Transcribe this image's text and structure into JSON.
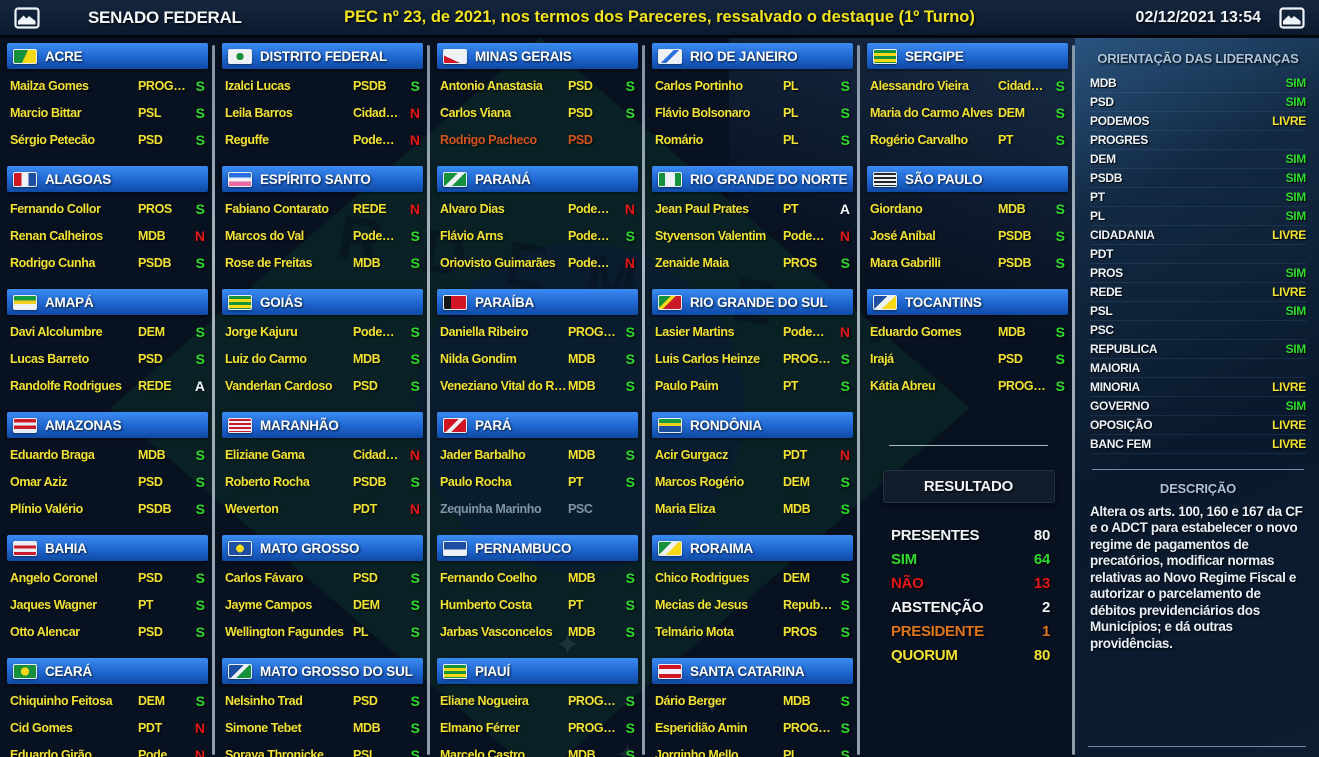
{
  "header": {
    "app": "SENADO FEDERAL",
    "title": "PEC nº 23, de 2021, nos termos dos Pareceres, ressalvado o destaque (1º Turno)",
    "datetime": "02/12/2021 13:54",
    "left_icon": "screen-icon",
    "right_icon": "screen-icon"
  },
  "vote_colors": {
    "sim": "#2ddc2d",
    "nao": "#e81717",
    "abstencao": "#f4f8fc",
    "presidente": "#d2561d",
    "livre": "#f2e232"
  },
  "states": [
    {
      "name": "ACRE",
      "flag": "background:linear-gradient(115deg,#15913c 48%,#f7d916 52%)",
      "senators": [
        {
          "name": "Mailza Gomes",
          "party": "PROGRES",
          "vote": "S",
          "status": "normal"
        },
        {
          "name": "Marcio Bittar",
          "party": "PSL",
          "vote": "S",
          "status": "normal"
        },
        {
          "name": "Sérgio Petecão",
          "party": "PSD",
          "vote": "S",
          "status": "normal"
        }
      ]
    },
    {
      "name": "ALAGOAS",
      "flag": "background:linear-gradient(90deg,#d01525 33%,#eef2f6 33% 66%,#1d4ea0 66%)",
      "senators": [
        {
          "name": "Fernando Collor",
          "party": "PROS",
          "vote": "S",
          "status": "normal"
        },
        {
          "name": "Renan Calheiros",
          "party": "MDB",
          "vote": "N",
          "status": "normal"
        },
        {
          "name": "Rodrigo Cunha",
          "party": "PSDB",
          "vote": "S",
          "status": "normal"
        }
      ]
    },
    {
      "name": "AMAPÁ",
      "flag": "background:linear-gradient(180deg,#159a3c 0 34%,#f2d01e 34% 62%,#eef2f6 62%)",
      "senators": [
        {
          "name": "Davi Alcolumbre",
          "party": "DEM",
          "vote": "S",
          "status": "normal"
        },
        {
          "name": "Lucas Barreto",
          "party": "PSD",
          "vote": "S",
          "status": "normal"
        },
        {
          "name": "Randolfe Rodrigues",
          "party": "REDE",
          "vote": "A",
          "status": "normal"
        }
      ]
    },
    {
      "name": "AMAZONAS",
      "flag": "background:linear-gradient(180deg,#c81a2b 0 25%,#e8edf2 25% 50%,#c81a2b 50% 75%,#e8edf2 75%)",
      "senators": [
        {
          "name": "Eduardo Braga",
          "party": "MDB",
          "vote": "S",
          "status": "normal"
        },
        {
          "name": "Omar Aziz",
          "party": "PSD",
          "vote": "S",
          "status": "normal"
        },
        {
          "name": "Plínio Valério",
          "party": "PSDB",
          "vote": "S",
          "status": "normal"
        }
      ]
    },
    {
      "name": "BAHIA",
      "flag": "background:linear-gradient(180deg,#e8edf2 0 25%,#c81a2b 25% 50%,#e8edf2 50% 75%,#c81a2b 75%)",
      "senators": [
        {
          "name": "Angelo Coronel",
          "party": "PSD",
          "vote": "S",
          "status": "normal"
        },
        {
          "name": "Jaques Wagner",
          "party": "PT",
          "vote": "S",
          "status": "normal"
        },
        {
          "name": "Otto Alencar",
          "party": "PSD",
          "vote": "S",
          "status": "normal"
        }
      ]
    },
    {
      "name": "CEARÁ",
      "flag": "background:radial-gradient(circle at 50% 50%,#f7d916 0 32%,#15913c 33%)",
      "senators": [
        {
          "name": "Chiquinho Feitosa",
          "party": "DEM",
          "vote": "S",
          "status": "normal"
        },
        {
          "name": "Cid Gomes",
          "party": "PDT",
          "vote": "N",
          "status": "normal"
        },
        {
          "name": "Eduardo Girão",
          "party": "Podemos",
          "vote": "N",
          "status": "normal"
        }
      ]
    },
    {
      "name": "DISTRITO FEDERAL",
      "flag": "background:radial-gradient(circle at 50% 50%,#15913c 0 28%,#eef2f6 29%)",
      "senators": [
        {
          "name": "Izalci Lucas",
          "party": "PSDB",
          "vote": "S",
          "status": "normal"
        },
        {
          "name": "Leila Barros",
          "party": "Cidadania",
          "vote": "N",
          "status": "normal"
        },
        {
          "name": "Reguffe",
          "party": "Podemos",
          "vote": "N",
          "status": "normal"
        }
      ]
    },
    {
      "name": "ESPÍRITO SANTO",
      "flag": "background:linear-gradient(180deg,#2a6fe0 0 33%,#eef2f6 33% 66%,#e86aa0 66%)",
      "senators": [
        {
          "name": "Fabiano Contarato",
          "party": "REDE",
          "vote": "N",
          "status": "normal"
        },
        {
          "name": "Marcos do Val",
          "party": "Podemos",
          "vote": "S",
          "status": "normal"
        },
        {
          "name": "Rose de Freitas",
          "party": "MDB",
          "vote": "S",
          "status": "normal"
        }
      ]
    },
    {
      "name": "GOIÁS",
      "flag": "background:repeating-linear-gradient(180deg,#15913c 0 3px,#f7d916 3px 6px)",
      "senators": [
        {
          "name": "Jorge Kajuru",
          "party": "Podemos",
          "vote": "S",
          "status": "normal"
        },
        {
          "name": "Luiz do Carmo",
          "party": "MDB",
          "vote": "S",
          "status": "normal"
        },
        {
          "name": "Vanderlan Cardoso",
          "party": "PSD",
          "vote": "S",
          "status": "normal"
        }
      ]
    },
    {
      "name": "MARANHÃO",
      "flag": "background:repeating-linear-gradient(180deg,#c81a2b 0 2px,#eef2f6 2px 4px)",
      "senators": [
        {
          "name": "Eliziane Gama",
          "party": "Cidadania",
          "vote": "N",
          "status": "normal"
        },
        {
          "name": "Roberto Rocha",
          "party": "PSDB",
          "vote": "S",
          "status": "normal"
        },
        {
          "name": "Weverton",
          "party": "PDT",
          "vote": "N",
          "status": "normal"
        }
      ]
    },
    {
      "name": "MATO GROSSO",
      "flag": "background:radial-gradient(circle at 50% 50%,#f7d916 0 30%,#1d4ea0 31%)",
      "senators": [
        {
          "name": "Carlos Fávaro",
          "party": "PSD",
          "vote": "S",
          "status": "normal"
        },
        {
          "name": "Jayme Campos",
          "party": "DEM",
          "vote": "S",
          "status": "normal"
        },
        {
          "name": "Wellington Fagundes",
          "party": "PL",
          "vote": "S",
          "status": "normal"
        }
      ]
    },
    {
      "name": "MATO GROSSO DO SUL",
      "flag": "background:linear-gradient(135deg,#1d4ea0 42%,#eef2f6 42% 58%,#15913c 58%)",
      "senators": [
        {
          "name": "Nelsinho Trad",
          "party": "PSD",
          "vote": "S",
          "status": "normal"
        },
        {
          "name": "Simone Tebet",
          "party": "MDB",
          "vote": "S",
          "status": "normal"
        },
        {
          "name": "Soraya Thronicke",
          "party": "PSL",
          "vote": "S",
          "status": "normal"
        }
      ]
    },
    {
      "name": "MINAS GERAIS",
      "flag": "background:linear-gradient(25deg,#d01525 32%,#eef2f6 32%)",
      "senators": [
        {
          "name": "Antonio Anastasia",
          "party": "PSD",
          "vote": "S",
          "status": "normal"
        },
        {
          "name": "Carlos Viana",
          "party": "PSD",
          "vote": "S",
          "status": "normal"
        },
        {
          "name": "Rodrigo Pacheco",
          "party": "PSD",
          "vote": "",
          "status": "president"
        }
      ]
    },
    {
      "name": "PARANÁ",
      "flag": "background:linear-gradient(135deg,#15913c 40%,#eef2f6 40% 60%,#15913c 60%)",
      "senators": [
        {
          "name": "Alvaro Dias",
          "party": "Podemos",
          "vote": "N",
          "status": "normal"
        },
        {
          "name": "Flávio Arns",
          "party": "Podemos",
          "vote": "S",
          "status": "normal"
        },
        {
          "name": "Oriovisto Guimarães",
          "party": "Podemos",
          "vote": "N",
          "status": "normal"
        }
      ]
    },
    {
      "name": "PARAÍBA",
      "flag": "background:linear-gradient(90deg,#14161a 32%,#d01525 32%)",
      "senators": [
        {
          "name": "Daniella Ribeiro",
          "party": "PROGRES",
          "vote": "S",
          "status": "normal"
        },
        {
          "name": "Nilda Gondim",
          "party": "MDB",
          "vote": "S",
          "status": "normal"
        },
        {
          "name": "Veneziano Vital do Rê...",
          "party": "MDB",
          "vote": "S",
          "status": "normal"
        }
      ]
    },
    {
      "name": "PARÁ",
      "flag": "background:linear-gradient(135deg,#d01525 42%,#eef2f6 42% 58%,#d01525 58%)",
      "senators": [
        {
          "name": "Jader Barbalho",
          "party": "MDB",
          "vote": "S",
          "status": "normal"
        },
        {
          "name": "Paulo Rocha",
          "party": "PT",
          "vote": "S",
          "status": "normal"
        },
        {
          "name": "Zequinha Marinho",
          "party": "PSC",
          "vote": "",
          "status": "absent"
        }
      ]
    },
    {
      "name": "PERNAMBUCO",
      "flag": "background:linear-gradient(180deg,#1d4ea0 58%,#eef2f6 58%)",
      "senators": [
        {
          "name": "Fernando Coelho",
          "party": "MDB",
          "vote": "S",
          "status": "normal"
        },
        {
          "name": "Humberto Costa",
          "party": "PT",
          "vote": "S",
          "status": "normal"
        },
        {
          "name": "Jarbas Vasconcelos",
          "party": "MDB",
          "vote": "S",
          "status": "normal"
        }
      ]
    },
    {
      "name": "PIAUÍ",
      "flag": "background:repeating-linear-gradient(180deg,#15913c 0 3px,#f7d916 3px 6px)",
      "senators": [
        {
          "name": "Eliane Nogueira",
          "party": "PROGRES",
          "vote": "S",
          "status": "normal"
        },
        {
          "name": "Elmano Férrer",
          "party": "PROGRES",
          "vote": "S",
          "status": "normal"
        },
        {
          "name": "Marcelo Castro",
          "party": "MDB",
          "vote": "S",
          "status": "normal"
        }
      ]
    },
    {
      "name": "RIO DE JANEIRO",
      "flag": "background:linear-gradient(135deg,#eef2f6 42%,#2a6fe0 42% 58%,#eef2f6 58%)",
      "senators": [
        {
          "name": "Carlos Portinho",
          "party": "PL",
          "vote": "S",
          "status": "normal"
        },
        {
          "name": "Flávio Bolsonaro",
          "party": "PL",
          "vote": "S",
          "status": "normal"
        },
        {
          "name": "Romário",
          "party": "PL",
          "vote": "S",
          "status": "normal"
        }
      ]
    },
    {
      "name": "RIO GRANDE DO NORTE",
      "flag": "background:linear-gradient(90deg,#15913c 0 28%,#eef2f6 28% 72%,#15913c 72%)",
      "senators": [
        {
          "name": "Jean Paul Prates",
          "party": "PT",
          "vote": "A",
          "status": "normal"
        },
        {
          "name": "Styvenson Valentim",
          "party": "Podemos",
          "vote": "N",
          "status": "normal"
        },
        {
          "name": "Zenaide Maia",
          "party": "PROS",
          "vote": "S",
          "status": "normal"
        }
      ]
    },
    {
      "name": "RIO GRANDE DO SUL",
      "flag": "background:linear-gradient(135deg,#15913c 33%,#f7d916 33% 48%,#c81a2b 48%)",
      "senators": [
        {
          "name": "Lasier Martins",
          "party": "Podemos",
          "vote": "N",
          "status": "normal"
        },
        {
          "name": "Luis Carlos Heinze",
          "party": "PROGRES",
          "vote": "S",
          "status": "normal"
        },
        {
          "name": "Paulo Paim",
          "party": "PT",
          "vote": "S",
          "status": "normal"
        }
      ]
    },
    {
      "name": "RONDÔNIA",
      "flag": "background:linear-gradient(180deg,#159a3c 0 30%,#f2d01e 30% 55%,#1d4ea0 55%)",
      "senators": [
        {
          "name": "Acir Gurgacz",
          "party": "PDT",
          "vote": "N",
          "status": "normal"
        },
        {
          "name": "Marcos Rogério",
          "party": "DEM",
          "vote": "S",
          "status": "normal"
        },
        {
          "name": "Maria Eliza",
          "party": "MDB",
          "vote": "S",
          "status": "normal"
        }
      ]
    },
    {
      "name": "RORAIMA",
      "flag": "background:linear-gradient(135deg,#15913c 36%,#eef2f6 36% 56%,#f7d916 56%)",
      "senators": [
        {
          "name": "Chico Rodrigues",
          "party": "DEM",
          "vote": "S",
          "status": "normal"
        },
        {
          "name": "Mecias de Jesus",
          "party": "Republica",
          "vote": "S",
          "status": "normal"
        },
        {
          "name": "Telmário Mota",
          "party": "PROS",
          "vote": "S",
          "status": "normal"
        }
      ]
    },
    {
      "name": "SANTA CATARINA",
      "flag": "background:linear-gradient(180deg,#d01525 0 32%,#eef2f6 32% 68%,#d01525 68%)",
      "senators": [
        {
          "name": "Dário Berger",
          "party": "MDB",
          "vote": "S",
          "status": "normal"
        },
        {
          "name": "Esperidião Amin",
          "party": "PROGRES",
          "vote": "S",
          "status": "normal"
        },
        {
          "name": "Jorginho Mello",
          "party": "PL",
          "vote": "S",
          "status": "normal"
        }
      ]
    },
    {
      "name": "SERGIPE",
      "flag": "background:repeating-linear-gradient(180deg,#15913c 0 3px,#f7d916 3px 6px)",
      "senators": [
        {
          "name": "Alessandro Vieira",
          "party": "Cidadania",
          "vote": "S",
          "status": "normal"
        },
        {
          "name": "Maria do Carmo Alves",
          "party": "DEM",
          "vote": "S",
          "status": "normal"
        },
        {
          "name": "Rogério Carvalho",
          "party": "PT",
          "vote": "S",
          "status": "normal"
        }
      ]
    },
    {
      "name": "SÃO PAULO",
      "flag": "background:repeating-linear-gradient(180deg,#23262b 0 2px,#eef2f6 2px 4px)",
      "senators": [
        {
          "name": "Giordano",
          "party": "MDB",
          "vote": "S",
          "status": "normal"
        },
        {
          "name": "José Aníbal",
          "party": "PSDB",
          "vote": "S",
          "status": "normal"
        },
        {
          "name": "Mara Gabrilli",
          "party": "PSDB",
          "vote": "S",
          "status": "normal"
        }
      ]
    },
    {
      "name": "TOCANTINS",
      "flag": "background:linear-gradient(135deg,#1d4ea0 38%,#eef2f6 38% 60%,#f7d916 60%)",
      "senators": [
        {
          "name": "Eduardo Gomes",
          "party": "MDB",
          "vote": "S",
          "status": "normal"
        },
        {
          "name": "Irajá",
          "party": "PSD",
          "vote": "S",
          "status": "normal"
        },
        {
          "name": "Kátia Abreu",
          "party": "PROGRES",
          "vote": "S",
          "status": "normal"
        }
      ]
    }
  ],
  "resultado": {
    "title": "RESULTADO",
    "rows": [
      {
        "label": "PRESENTES",
        "value": "80",
        "tone": "white"
      },
      {
        "label": "SIM",
        "value": "64",
        "tone": "green"
      },
      {
        "label": "NÃO",
        "value": "13",
        "tone": "red"
      },
      {
        "label": "ABSTENÇÃO",
        "value": "2",
        "tone": "white"
      },
      {
        "label": "PRESIDENTE",
        "value": "1",
        "tone": "orange"
      },
      {
        "label": "QUORUM",
        "value": "80",
        "tone": "yellow"
      }
    ]
  },
  "orientacao": {
    "title": "ORIENTAÇÃO DAS LIDERANÇAS",
    "rows": [
      {
        "party": "MDB",
        "value": "SIM",
        "tone": "green"
      },
      {
        "party": "PSD",
        "value": "SIM",
        "tone": "green"
      },
      {
        "party": "PODEMOS",
        "value": "LIVRE",
        "tone": "yellow"
      },
      {
        "party": "PROGRES",
        "value": "",
        "tone": ""
      },
      {
        "party": "DEM",
        "value": "SIM",
        "tone": "green"
      },
      {
        "party": "PSDB",
        "value": "SIM",
        "tone": "green"
      },
      {
        "party": "PT",
        "value": "SIM",
        "tone": "green"
      },
      {
        "party": "PL",
        "value": "SIM",
        "tone": "green"
      },
      {
        "party": "CIDADANIA",
        "value": "LIVRE",
        "tone": "yellow"
      },
      {
        "party": "PDT",
        "value": "",
        "tone": ""
      },
      {
        "party": "PROS",
        "value": "SIM",
        "tone": "green"
      },
      {
        "party": "REDE",
        "value": "LIVRE",
        "tone": "yellow"
      },
      {
        "party": "PSL",
        "value": "SIM",
        "tone": "green"
      },
      {
        "party": "PSC",
        "value": "",
        "tone": ""
      },
      {
        "party": "REPUBLICA",
        "value": "SIM",
        "tone": "green"
      },
      {
        "party": "MAIORIA",
        "value": "",
        "tone": ""
      },
      {
        "party": "MINORIA",
        "value": "LIVRE",
        "tone": "yellow"
      },
      {
        "party": "GOVERNO",
        "value": "SIM",
        "tone": "green"
      },
      {
        "party": "OPOSIÇÃO",
        "value": "LIVRE",
        "tone": "yellow"
      },
      {
        "party": "BANC FEM",
        "value": "LIVRE",
        "tone": "yellow"
      }
    ]
  },
  "descricao": {
    "title": "DESCRIÇÃO",
    "text": "Altera os arts. 100, 160 e 167 da CF e o ADCT para estabelecer o novo regime de pagamentos de precatórios, modificar normas relativas ao Novo Regime Fiscal e autorizar o parcelamento de débitos previdenciários dos Municípios; e dá outras providências."
  }
}
